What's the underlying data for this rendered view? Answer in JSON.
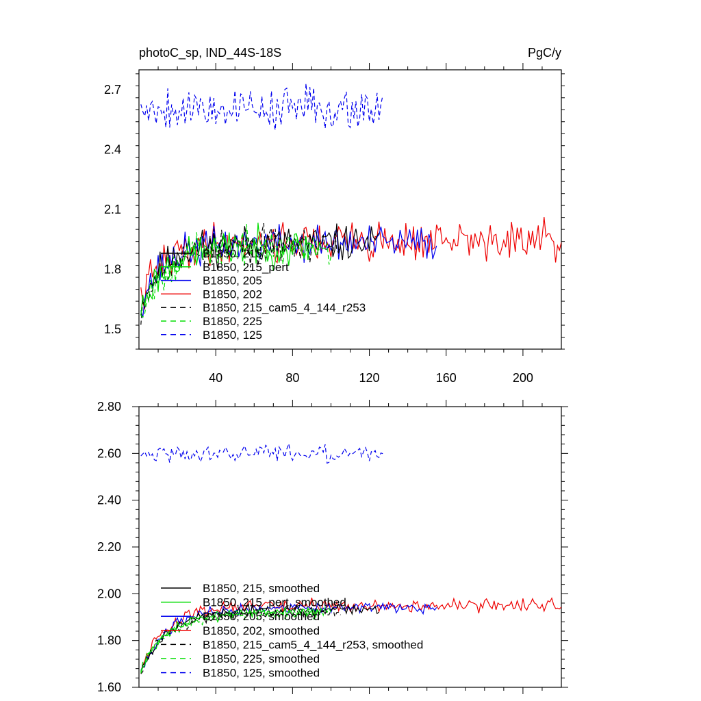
{
  "chart_data": [
    {
      "type": "line",
      "title_left": "photoC_sp, IND_44S-18S",
      "title_right": "PgC/y",
      "xlabel": "",
      "ylabel": "",
      "xlim": [
        0,
        220
      ],
      "ylim": [
        1.4,
        2.8
      ],
      "xticks": [
        40,
        80,
        120,
        160,
        200
      ],
      "xtick_labels": [
        "40",
        "80",
        "120",
        "160",
        "200"
      ],
      "xtick_labels_position": "bottom",
      "yticks": [
        1.5,
        1.8,
        2.1,
        2.4,
        2.7
      ],
      "ytick_labels": [
        "1.5",
        "1.8",
        "2.1",
        "2.4",
        "2.7"
      ],
      "grid": false,
      "legend_position": "bottom-left",
      "series": [
        {
          "name": "B1850, 215",
          "legend": "B1850, 215",
          "color": "#000000",
          "dash": "solid",
          "length": 125,
          "start": 1.6,
          "plateau": 1.93,
          "rise": 12,
          "noise": 0.045,
          "seed": 11
        },
        {
          "name": "B1850, 215_pert",
          "legend": "B1850, 215_pert",
          "color": "#00dd00",
          "dash": "solid",
          "length": 95,
          "start": 1.57,
          "plateau": 1.91,
          "rise": 12,
          "noise": 0.045,
          "seed": 23
        },
        {
          "name": "B1850, 205",
          "legend": "B1850, 205",
          "color": "#0000ee",
          "dash": "solid",
          "length": 155,
          "start": 1.61,
          "plateau": 1.93,
          "rise": 12,
          "noise": 0.045,
          "seed": 37
        },
        {
          "name": "B1850, 202",
          "legend": "B1850, 202",
          "color": "#ee0000",
          "dash": "solid",
          "length": 220,
          "start": 1.62,
          "plateau": 1.94,
          "rise": 12,
          "noise": 0.05,
          "seed": 41
        },
        {
          "name": "B1850, 215_cam5_4_144_r253",
          "legend": "B1850, 215_cam5_4_144_r253",
          "color": "#000000",
          "dash": "dashed",
          "length": 105,
          "start": 1.59,
          "plateau": 1.92,
          "rise": 12,
          "noise": 0.045,
          "seed": 53
        },
        {
          "name": "B1850, 225",
          "legend": "B1850, 225",
          "color": "#00dd00",
          "dash": "dashed",
          "length": 100,
          "start": 1.56,
          "plateau": 1.91,
          "rise": 12,
          "noise": 0.045,
          "seed": 67
        },
        {
          "name": "B1850, 125",
          "legend": "B1850, 125",
          "color": "#0000ee",
          "dash": "dashed",
          "length": 127,
          "start": 2.62,
          "plateau": 2.61,
          "rise": 1,
          "noise": 0.055,
          "seed": 79
        }
      ]
    },
    {
      "type": "line",
      "title_left": "",
      "title_right": "",
      "xlabel": "",
      "ylabel": "",
      "xlim": [
        0,
        220
      ],
      "ylim": [
        1.6,
        2.8
      ],
      "xticks": [
        40,
        80,
        120,
        160,
        200
      ],
      "xtick_labels": [],
      "yticks": [
        1.6,
        1.8,
        2.0,
        2.2,
        2.4,
        2.6,
        2.8
      ],
      "ytick_labels": [
        "1.60",
        "1.80",
        "2.00",
        "2.20",
        "2.40",
        "2.60",
        "2.80"
      ],
      "grid": false,
      "legend_position": "bottom-left",
      "series": [
        {
          "name": "B1850, 215, smoothed",
          "legend": "B1850, 215, smoothed",
          "color": "#000000",
          "dash": "solid",
          "length": 125,
          "start": 1.65,
          "plateau": 1.93,
          "rise": 14,
          "noise": 0.012,
          "seed": 111
        },
        {
          "name": "B1850, 215_pert, smoothed",
          "legend": "B1850, 215_pert, smoothed",
          "color": "#00dd00",
          "dash": "solid",
          "length": 95,
          "start": 1.66,
          "plateau": 1.92,
          "rise": 14,
          "noise": 0.012,
          "seed": 123
        },
        {
          "name": "B1850, 205, smoothed",
          "legend": "B1850, 205, smoothed",
          "color": "#0000ee",
          "dash": "solid",
          "length": 155,
          "start": 1.65,
          "plateau": 1.94,
          "rise": 14,
          "noise": 0.012,
          "seed": 137
        },
        {
          "name": "B1850, 202, smoothed",
          "legend": "B1850, 202, smoothed",
          "color": "#ee0000",
          "dash": "solid",
          "length": 220,
          "start": 1.66,
          "plateau": 1.95,
          "rise": 13,
          "noise": 0.014,
          "seed": 141
        },
        {
          "name": "B1850, 215_cam5_4_144_r253, smoothed",
          "legend": "B1850, 215_cam5_4_144_r253, smoothed",
          "color": "#000000",
          "dash": "dashed",
          "length": 105,
          "start": 1.65,
          "plateau": 1.92,
          "rise": 14,
          "noise": 0.012,
          "seed": 153
        },
        {
          "name": "B1850, 225, smoothed",
          "legend": "B1850, 225, smoothed",
          "color": "#00dd00",
          "dash": "dashed",
          "length": 100,
          "start": 1.66,
          "plateau": 1.92,
          "rise": 14,
          "noise": 0.012,
          "seed": 167
        },
        {
          "name": "B1850, 125, smoothed",
          "legend": "B1850, 125, smoothed",
          "color": "#0000ee",
          "dash": "dashed",
          "length": 127,
          "start": 2.6,
          "plateau": 2.6,
          "rise": 1,
          "noise": 0.018,
          "seed": 179
        }
      ]
    }
  ]
}
